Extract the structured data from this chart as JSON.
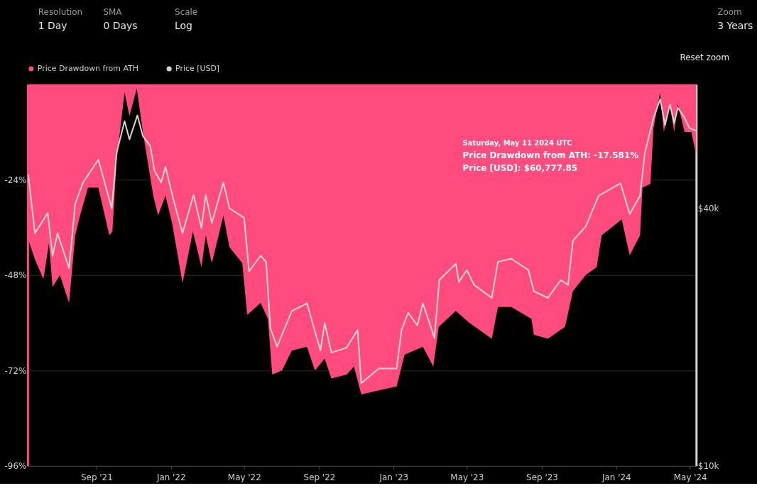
{
  "chart_data": {
    "type": "area",
    "series": [
      {
        "name": "Price Drawdown from ATH",
        "color": "#ff4b7e",
        "axis": "y",
        "x": [
          "2021-05-12",
          "2021-05-23",
          "2021-06-06",
          "2021-06-15",
          "2021-06-21",
          "2021-07-03",
          "2021-07-18",
          "2021-07-28",
          "2021-08-05",
          "2021-08-18",
          "2021-09-04",
          "2021-09-22",
          "2021-09-27",
          "2021-10-04",
          "2021-10-17",
          "2021-10-25",
          "2021-11-06",
          "2021-11-16",
          "2021-12-03",
          "2021-12-11",
          "2021-12-23",
          "2022-01-03",
          "2022-01-20",
          "2022-02-06",
          "2022-02-20",
          "2022-02-27",
          "2022-03-09",
          "2022-03-28",
          "2022-04-07",
          "2022-04-28",
          "2022-05-06",
          "2022-05-28",
          "2022-06-09",
          "2022-06-16",
          "2022-07-02",
          "2022-07-18",
          "2022-08-12",
          "2022-08-25",
          "2022-09-10",
          "2022-09-21",
          "2022-10-16",
          "2022-10-28",
          "2022-11-09",
          "2022-12-08",
          "2023-01-06",
          "2023-01-19",
          "2023-02-18",
          "2023-03-07",
          "2023-03-16",
          "2023-04-13",
          "2023-05-05",
          "2023-06-11",
          "2023-06-21",
          "2023-07-13",
          "2023-08-15",
          "2023-08-19",
          "2023-09-11",
          "2023-10-09",
          "2023-10-22",
          "2023-11-12",
          "2023-11-30",
          "2023-12-08",
          "2024-01-10",
          "2024-01-23",
          "2024-02-09",
          "2024-02-13",
          "2024-02-26",
          "2024-03-02",
          "2024-03-13",
          "2024-03-19",
          "2024-03-29",
          "2024-04-05",
          "2024-04-11",
          "2024-04-22",
          "2024-05-03",
          "2024-05-11"
        ],
        "values": [
          -39,
          -44,
          -49,
          -40,
          -51,
          -48,
          -55,
          -38,
          -33,
          -26,
          -26,
          -38,
          -37,
          -19,
          -2,
          -8,
          -1,
          -12,
          -28,
          -33,
          -28,
          -35,
          -50,
          -37,
          -46,
          -38,
          -45,
          -33,
          -41,
          -45,
          -58,
          -55,
          -59,
          -73,
          -72,
          -67,
          -66,
          -72,
          -69,
          -74,
          -73,
          -71,
          -78,
          -77,
          -76,
          -68,
          -66,
          -71,
          -61,
          -57,
          -60,
          -64,
          -56,
          -56,
          -59,
          -63,
          -64,
          -61,
          -52,
          -48,
          -46,
          -38,
          -34,
          -43,
          -38,
          -26,
          -25,
          -11,
          -2,
          -12,
          -5,
          -12,
          -5,
          -12,
          -12,
          -17.581
        ]
      },
      {
        "name": "Price [USD]",
        "type": "line",
        "color": "#d6d6d6",
        "axis": "y2",
        "x": [
          "2021-05-12",
          "2021-05-23",
          "2021-06-13",
          "2021-06-21",
          "2021-06-29",
          "2021-07-18",
          "2021-07-28",
          "2021-08-10",
          "2021-09-04",
          "2021-09-26",
          "2021-10-04",
          "2021-10-17",
          "2021-10-25",
          "2021-11-07",
          "2021-11-16",
          "2021-11-28",
          "2021-12-05",
          "2021-12-16",
          "2021-12-23",
          "2022-01-05",
          "2022-01-20",
          "2022-02-07",
          "2022-02-20",
          "2022-02-27",
          "2022-03-09",
          "2022-03-28",
          "2022-04-07",
          "2022-05-01",
          "2022-05-09",
          "2022-05-28",
          "2022-06-06",
          "2022-06-13",
          "2022-06-24",
          "2022-07-18",
          "2022-08-12",
          "2022-09-03",
          "2022-09-10",
          "2022-09-21",
          "2022-10-16",
          "2022-11-03",
          "2022-11-09",
          "2022-12-08",
          "2023-01-06",
          "2023-01-14",
          "2023-01-25",
          "2023-02-09",
          "2023-02-18",
          "2023-03-09",
          "2023-03-17",
          "2023-04-13",
          "2023-04-18",
          "2023-05-01",
          "2023-05-13",
          "2023-06-11",
          "2023-06-21",
          "2023-07-13",
          "2023-08-10",
          "2023-08-19",
          "2023-09-11",
          "2023-10-02",
          "2023-10-14",
          "2023-10-22",
          "2023-11-12",
          "2023-12-03",
          "2024-01-08",
          "2024-01-23",
          "2024-02-09",
          "2024-02-17",
          "2024-03-02",
          "2024-03-13",
          "2024-03-21",
          "2024-03-29",
          "2024-04-05",
          "2024-04-11",
          "2024-04-22",
          "2024-04-30",
          "2024-05-11"
        ],
        "values": [
          48000,
          35000,
          39000,
          31000,
          35000,
          29000,
          41000,
          46000,
          52000,
          40000,
          54000,
          64000,
          58000,
          66000,
          59000,
          56000,
          49000,
          46000,
          50000,
          42000,
          35000,
          43000,
          36000,
          43000,
          37000,
          46000,
          40000,
          38000,
          28500,
          31000,
          30000,
          21000,
          19000,
          23000,
          24000,
          18600,
          21600,
          18400,
          18900,
          20800,
          15600,
          16900,
          16900,
          20800,
          22800,
          21300,
          24000,
          19900,
          27200,
          29700,
          26900,
          28700,
          26500,
          24700,
          30000,
          30500,
          28700,
          25600,
          24700,
          27200,
          26500,
          33600,
          36300,
          42800,
          45800,
          38800,
          42800,
          54000,
          65000,
          72000,
          62600,
          70000,
          63300,
          68800,
          65100,
          61600,
          60777.85
        ]
      }
    ],
    "xlim": [
      "2021-05-11",
      "2024-05-11"
    ],
    "xticks": [
      {
        "value": "2021-09-01",
        "label": "Sep '21"
      },
      {
        "value": "2022-01-01",
        "label": "Jan '22"
      },
      {
        "value": "2022-05-01",
        "label": "May '22"
      },
      {
        "value": "2022-09-01",
        "label": "Sep '22"
      },
      {
        "value": "2023-01-01",
        "label": "Jan '23"
      },
      {
        "value": "2023-05-01",
        "label": "May '23"
      },
      {
        "value": "2023-09-01",
        "label": "Sep '23"
      },
      {
        "value": "2024-01-01",
        "label": "Jan '24"
      },
      {
        "value": "2024-05-01",
        "label": "May '24"
      }
    ],
    "ylim": [
      -96,
      0
    ],
    "yticks": [
      {
        "value": -24,
        "label": "-24%"
      },
      {
        "value": -48,
        "label": "-48%"
      },
      {
        "value": -72,
        "label": "-72%"
      },
      {
        "value": -96,
        "label": "-96%"
      }
    ],
    "y2lim": [
      10000,
      78000
    ],
    "y2ticks": [
      {
        "value": 10000,
        "label": "$10k"
      },
      {
        "value": 40000,
        "label": "$40k"
      }
    ],
    "log": "y2",
    "grid": "y",
    "legend": "top left",
    "annotations": [
      "Saturday, May 11 2024 UTC",
      "Price Drawdown from ATH: -17.581%",
      "Price [USD]: $60,777.85",
      "Resolution",
      "1 Day",
      "SMA",
      "0 Days",
      "Scale",
      "Log",
      "Zoom",
      "3 Years",
      "Reset zoom"
    ]
  }
}
